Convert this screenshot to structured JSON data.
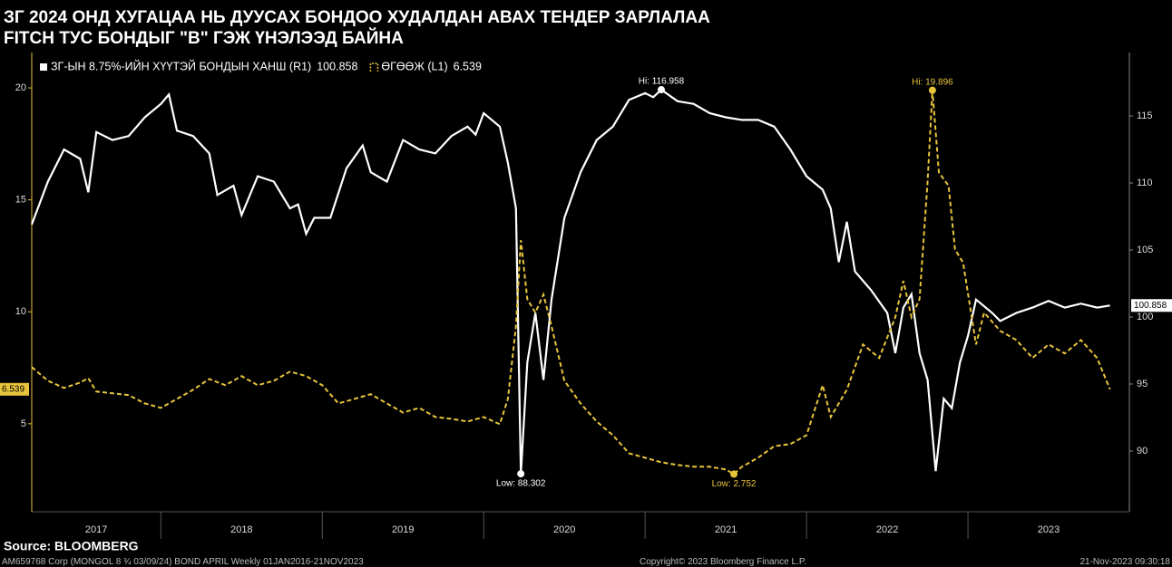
{
  "chart_data": {
    "type": "line",
    "title": "ЗГ 2024 ОНД ХУГАЦАА НЬ ДУУСАХ БОНДОО ХУДАЛДАН АВАХ ТЕНДЕР ЗАРЛАЛАА",
    "subtitle": "FITCH ТУС БОНДЫГ \"B\" ГЭЖ ҮНЭЛЭЭД БАЙНА",
    "source": "Source: BLOOMBERG",
    "footer_left": "AM659768 Corp (MONGOL 8 ¾ 03/09/24) BOND APRIL  Weekly 01JAN2016-21NOV2023",
    "footer_center": "Copyright© 2023 Bloomberg Finance L.P.",
    "footer_right": "21-Nov-2023 09:30:18",
    "xlim": [
      2017.2,
      2024.0
    ],
    "xticks": [
      2017,
      2018,
      2019,
      2020,
      2021,
      2022,
      2023
    ],
    "ylim": [
      1.07,
      21.58
    ],
    "yticks": [
      5,
      10,
      15,
      20
    ],
    "y2lim": [
      85.47,
      119.73
    ],
    "y2ticks": [
      90,
      95,
      100,
      105,
      110,
      115
    ],
    "series": [
      {
        "name": "ЗГ-ЫН 8.75%-ИЙН ХҮҮТЭЙ БОНДЫН ХАНШ (R1)",
        "color": "#ffffff",
        "axis": "y2",
        "dash": false,
        "high_label": "Hi: 116.958",
        "low_label": "Low: 88.302",
        "x": [
          2017.2,
          2017.3,
          2017.4,
          2017.5,
          2017.55,
          2017.6,
          2017.7,
          2017.8,
          2017.9,
          2018.0,
          2018.05,
          2018.1,
          2018.2,
          2018.3,
          2018.35,
          2018.45,
          2018.5,
          2018.6,
          2018.7,
          2018.8,
          2018.85,
          2018.9,
          2018.95,
          2019.05,
          2019.15,
          2019.25,
          2019.3,
          2019.4,
          2019.5,
          2019.6,
          2019.7,
          2019.8,
          2019.9,
          2019.95,
          2020.0,
          2020.1,
          2020.15,
          2020.2,
          2020.23,
          2020.27,
          2020.32,
          2020.37,
          2020.42,
          2020.5,
          2020.6,
          2020.7,
          2020.8,
          2020.9,
          2021.0,
          2021.05,
          2021.1,
          2021.2,
          2021.3,
          2021.4,
          2021.5,
          2021.6,
          2021.7,
          2021.8,
          2021.9,
          2022.0,
          2022.1,
          2022.15,
          2022.2,
          2022.25,
          2022.3,
          2022.4,
          2022.5,
          2022.55,
          2022.6,
          2022.65,
          2022.7,
          2022.75,
          2022.8,
          2022.85,
          2022.9,
          2022.95,
          2023.0,
          2023.05,
          2023.15,
          2023.2,
          2023.3,
          2023.4,
          2023.5,
          2023.6,
          2023.7,
          2023.8,
          2023.88
        ],
        "values": [
          106.9,
          110.1,
          112.5,
          111.8,
          109.3,
          113.8,
          113.2,
          113.5,
          114.9,
          115.9,
          116.6,
          113.9,
          113.5,
          112.2,
          109.1,
          109.8,
          107.6,
          110.5,
          110.1,
          108.1,
          108.4,
          106.2,
          107.4,
          107.4,
          111.1,
          112.8,
          110.8,
          110.1,
          113.2,
          112.5,
          112.2,
          113.5,
          114.2,
          113.6,
          115.2,
          114.2,
          111.5,
          108.1,
          88.302,
          96.6,
          100.3,
          95.3,
          101.3,
          107.4,
          110.8,
          113.2,
          114.2,
          116.2,
          116.7,
          116.4,
          116.958,
          116.1,
          115.9,
          115.2,
          114.9,
          114.7,
          114.7,
          114.2,
          112.5,
          110.5,
          109.5,
          108.1,
          104.1,
          107.1,
          103.4,
          102.0,
          100.3,
          97.3,
          100.7,
          101.7,
          97.3,
          95.3,
          88.5,
          93.9,
          93.2,
          96.6,
          98.6,
          101.3,
          100.3,
          99.7,
          100.3,
          100.7,
          101.2,
          100.7,
          101.0,
          100.7,
          100.858
        ]
      },
      {
        "name": "ӨГӨӨЖ (L1)",
        "color": "#e8c43c",
        "axis": "y",
        "dash": true,
        "high_label": "Hi: 19.896",
        "low_label": "Low: 2.752",
        "x": [
          2017.2,
          2017.3,
          2017.4,
          2017.5,
          2017.55,
          2017.6,
          2017.8,
          2017.9,
          2018.0,
          2018.1,
          2018.2,
          2018.3,
          2018.4,
          2018.5,
          2018.6,
          2018.7,
          2018.8,
          2018.9,
          2019.0,
          2019.1,
          2019.2,
          2019.3,
          2019.4,
          2019.5,
          2019.6,
          2019.7,
          2019.8,
          2019.9,
          2020.0,
          2020.1,
          2020.15,
          2020.2,
          2020.23,
          2020.27,
          2020.32,
          2020.37,
          2020.42,
          2020.5,
          2020.6,
          2020.7,
          2020.8,
          2020.9,
          2021.0,
          2021.1,
          2021.2,
          2021.3,
          2021.4,
          2021.5,
          2021.55,
          2021.6,
          2021.7,
          2021.8,
          2021.9,
          2022.0,
          2022.1,
          2022.15,
          2022.25,
          2022.35,
          2022.45,
          2022.55,
          2022.6,
          2022.65,
          2022.7,
          2022.75,
          2022.78,
          2022.82,
          2022.88,
          2022.92,
          2022.97,
          2023.05,
          2023.1,
          2023.2,
          2023.3,
          2023.4,
          2023.5,
          2023.6,
          2023.7,
          2023.8,
          2023.88
        ],
        "values": [
          7.53,
          6.92,
          6.6,
          6.84,
          7.04,
          6.44,
          6.28,
          5.91,
          5.71,
          6.11,
          6.52,
          7.0,
          6.72,
          7.13,
          6.72,
          6.92,
          7.33,
          7.13,
          6.72,
          5.91,
          6.11,
          6.32,
          5.91,
          5.5,
          5.71,
          5.3,
          5.22,
          5.1,
          5.3,
          4.98,
          6.11,
          9.35,
          13.2,
          10.57,
          9.96,
          10.77,
          9.35,
          6.92,
          5.91,
          5.1,
          4.49,
          3.68,
          3.48,
          3.28,
          3.16,
          3.08,
          3.08,
          2.96,
          2.752,
          3.08,
          3.48,
          4.0,
          4.09,
          4.49,
          6.72,
          5.3,
          6.52,
          8.54,
          7.94,
          9.76,
          11.38,
          9.76,
          10.57,
          15.83,
          19.896,
          16.23,
          15.63,
          12.79,
          12.19,
          8.54,
          9.96,
          9.15,
          8.74,
          7.94,
          8.54,
          8.14,
          8.74,
          7.94,
          6.539
        ]
      }
    ]
  }
}
